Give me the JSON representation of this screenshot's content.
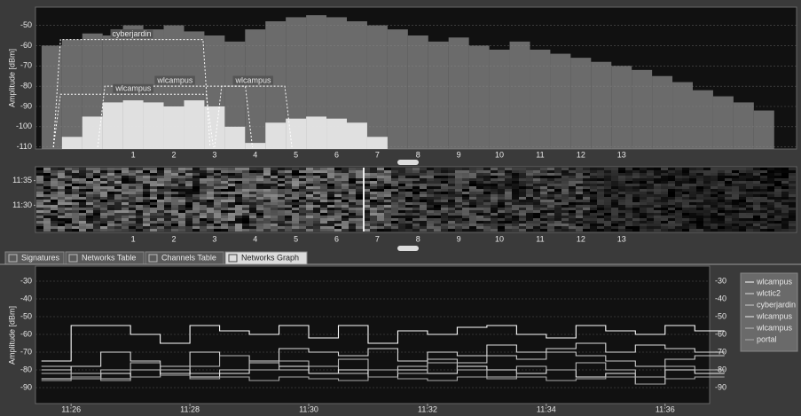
{
  "spectrum": {
    "type": "area",
    "y_label": "Amplitude [dBm]",
    "xlim": [
      -1.4,
      17.3
    ],
    "xticks": [
      1,
      2,
      3,
      4,
      5,
      6,
      7,
      8,
      9,
      10,
      11,
      12,
      13
    ],
    "ylim": [
      -111,
      -41
    ],
    "yticks": [
      -50,
      -60,
      -70,
      -80,
      -90,
      -100,
      -110
    ],
    "grid": true,
    "peak": {
      "x": [
        -1,
        -0.5,
        0,
        0.5,
        1,
        1.5,
        2,
        2.5,
        3,
        3.5,
        4,
        4.5,
        5,
        5.5,
        6,
        6.5,
        7,
        7.5,
        8,
        8.5,
        9,
        9.5,
        10,
        10.5,
        11,
        11.5,
        12,
        12.5,
        13,
        13.5,
        14,
        14.5,
        15,
        15.5,
        16,
        16.5
      ],
      "values": [
        -60,
        -57,
        -54,
        -55,
        -50,
        -52,
        -50,
        -53,
        -55,
        -58,
        -52,
        -48,
        -46,
        -45,
        -46,
        -48,
        -50,
        -52,
        -55,
        -58,
        -56,
        -60,
        -62,
        -58,
        -62,
        -64,
        -66,
        -68,
        -70,
        -72,
        -75,
        -78,
        -82,
        -85,
        -88,
        -92
      ]
    },
    "core": {
      "x": [
        -0.5,
        0,
        0.5,
        1,
        1.5,
        2,
        2.5,
        3,
        3.5,
        4,
        4.5,
        5,
        5.5,
        6,
        6.5,
        7
      ],
      "values": [
        -105,
        -95,
        -88,
        -87,
        -88,
        -90,
        -87,
        -90,
        -100,
        -108,
        -98,
        -96,
        -95,
        -96,
        -98,
        -105
      ]
    },
    "networks": [
      {
        "label": "cyberjardin",
        "span": [
          -0.96,
          2.89
        ],
        "level": -57
      },
      {
        "label": "wlcampus",
        "span": [
          0.13,
          3.93
        ],
        "level": -80
      },
      {
        "label": "wlcampus",
        "span": [
          3.0,
          4.9
        ],
        "level": -80
      },
      {
        "label": "wlcampus",
        "span": [
          -0.96,
          2.97
        ],
        "level": -84
      }
    ]
  },
  "waterfall": {
    "ylim": [
      24.5,
      37.8
    ],
    "yticks": [
      {
        "value": 35,
        "label": "11:35"
      },
      {
        "value": 30,
        "label": "11:30"
      }
    ],
    "xticks": [
      1,
      2,
      3,
      4,
      5,
      6,
      7,
      8,
      9,
      10,
      11,
      12,
      13
    ]
  },
  "tabs": {
    "items": [
      "Signatures",
      "Networks Table",
      "Channels Table",
      "Networks Graph"
    ],
    "active": 3
  },
  "chart_data": {
    "type": "line",
    "y_label": "Amplitude [dBm]",
    "xlim": [
      25.4,
      36.75
    ],
    "xticks": [
      {
        "value": 26,
        "label": "11:26"
      },
      {
        "value": 28,
        "label": "11:28"
      },
      {
        "value": 30,
        "label": "11:30"
      },
      {
        "value": 32,
        "label": "11:32"
      },
      {
        "value": 34,
        "label": "11:34"
      },
      {
        "value": 36,
        "label": "11:36"
      }
    ],
    "ylim": [
      -99,
      -21.5
    ],
    "yticks": [
      -30,
      -40,
      -50,
      -60,
      -70,
      -80,
      -90
    ],
    "grid": true,
    "legend": "right",
    "x": [
      25.5,
      26,
      26.5,
      27,
      27.5,
      28,
      28.5,
      29,
      29.5,
      30,
      30.5,
      31,
      31.5,
      32,
      32.5,
      33,
      33.5,
      34,
      34.5,
      35,
      35.5,
      36,
      36.5
    ],
    "series": [
      {
        "name": "wlcampus",
        "color": "#ffffff",
        "values": [
          -75,
          -55,
          -55,
          -60,
          -65,
          -55,
          -58,
          -60,
          -55,
          -62,
          -55,
          -65,
          -58,
          -60,
          -56,
          -55,
          -60,
          -62,
          -55,
          -58,
          -60,
          -55,
          -58
        ]
      },
      {
        "name": "wlctic2",
        "color": "#dddddd",
        "values": [
          -80,
          -78,
          -70,
          -75,
          -82,
          -70,
          -72,
          -75,
          -68,
          -70,
          -72,
          -68,
          -75,
          -70,
          -72,
          -66,
          -70,
          -68,
          -65,
          -70,
          -66,
          -68,
          -70
        ]
      },
      {
        "name": "cyberjardin",
        "color": "#cccccc",
        "values": [
          -78,
          -82,
          -85,
          -80,
          -78,
          -82,
          -80,
          -76,
          -80,
          -78,
          -82,
          -80,
          -78,
          -74,
          -76,
          -72,
          -74,
          -70,
          -72,
          -75,
          -78,
          -74,
          -72
        ]
      },
      {
        "name": "wlcampus",
        "color": "#eeeeee",
        "values": [
          -85,
          -84,
          -82,
          -84,
          -80,
          -84,
          -82,
          -80,
          -78,
          -82,
          -80,
          -84,
          -80,
          -82,
          -78,
          -80,
          -82,
          -80,
          -84,
          -82,
          -88,
          -80,
          -82
        ]
      },
      {
        "name": "wlcampus",
        "color": "#bbbbbb",
        "values": [
          -82,
          -85,
          -80,
          -76,
          -80,
          -78,
          -72,
          -80,
          -75,
          -78,
          -74,
          -80,
          -82,
          -76,
          -80,
          -84,
          -78,
          -80,
          -76,
          -80,
          -84,
          -78,
          -80
        ]
      },
      {
        "name": "portal",
        "color": "#aaaaaa",
        "values": [
          -86,
          -84,
          -86,
          -84,
          -83,
          -85,
          -84,
          -86,
          -84,
          -85,
          -86,
          -84,
          -85,
          -86,
          -84,
          -85,
          -84,
          -86,
          -85,
          -84,
          -88,
          -85,
          -84
        ]
      }
    ]
  }
}
